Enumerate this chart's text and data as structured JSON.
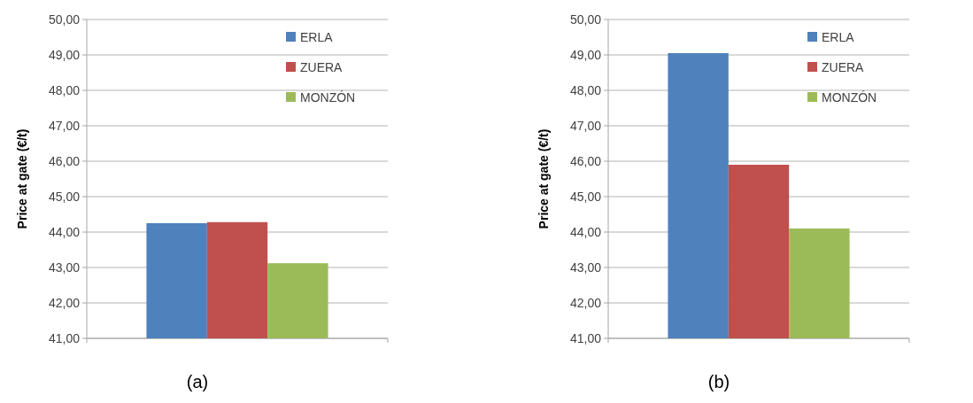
{
  "chart_data": [
    {
      "type": "bar",
      "xlabel": "(a)",
      "ylabel": "Price at gate (€/t)",
      "categories": [
        null
      ],
      "series": [
        {
          "name": "ERLA",
          "color": "#4f81bd",
          "values": [
            44.25
          ]
        },
        {
          "name": "ZUERA",
          "color": "#c0504d",
          "values": [
            44.28
          ]
        },
        {
          "name": "MONZÓN",
          "color": "#9bbb59",
          "values": [
            43.12
          ]
        }
      ],
      "ylim": [
        41,
        50
      ],
      "yticks": [
        {
          "value": 41,
          "label": "41,00"
        },
        {
          "value": 42,
          "label": "42,00"
        },
        {
          "value": 43,
          "label": "43,00"
        },
        {
          "value": 44,
          "label": "44,00"
        },
        {
          "value": 45,
          "label": "45,00"
        },
        {
          "value": 46,
          "label": "46,00"
        },
        {
          "value": 47,
          "label": "47,00"
        },
        {
          "value": 48,
          "label": "48,00"
        },
        {
          "value": 49,
          "label": "49,00"
        },
        {
          "value": 50,
          "label": "50,00"
        }
      ],
      "grid": "y",
      "legend": "top right"
    },
    {
      "type": "bar",
      "xlabel": "(b)",
      "ylabel": "Price at gate (€/t)",
      "categories": [
        null
      ],
      "series": [
        {
          "name": "ERLA",
          "color": "#4f81bd",
          "values": [
            49.05
          ]
        },
        {
          "name": "ZUERA",
          "color": "#c0504d",
          "values": [
            45.9
          ]
        },
        {
          "name": "MONZÓN",
          "color": "#9bbb59",
          "values": [
            44.1
          ]
        }
      ],
      "ylim": [
        41,
        50
      ],
      "yticks": [
        {
          "value": 41,
          "label": "41,00"
        },
        {
          "value": 42,
          "label": "42,00"
        },
        {
          "value": 43,
          "label": "43,00"
        },
        {
          "value": 44,
          "label": "44,00"
        },
        {
          "value": 45,
          "label": "45,00"
        },
        {
          "value": 46,
          "label": "46,00"
        },
        {
          "value": 47,
          "label": "47,00"
        },
        {
          "value": 48,
          "label": "48,00"
        },
        {
          "value": 49,
          "label": "49,00"
        },
        {
          "value": 50,
          "label": "50,00"
        }
      ],
      "grid": "y",
      "legend": "top right"
    }
  ]
}
